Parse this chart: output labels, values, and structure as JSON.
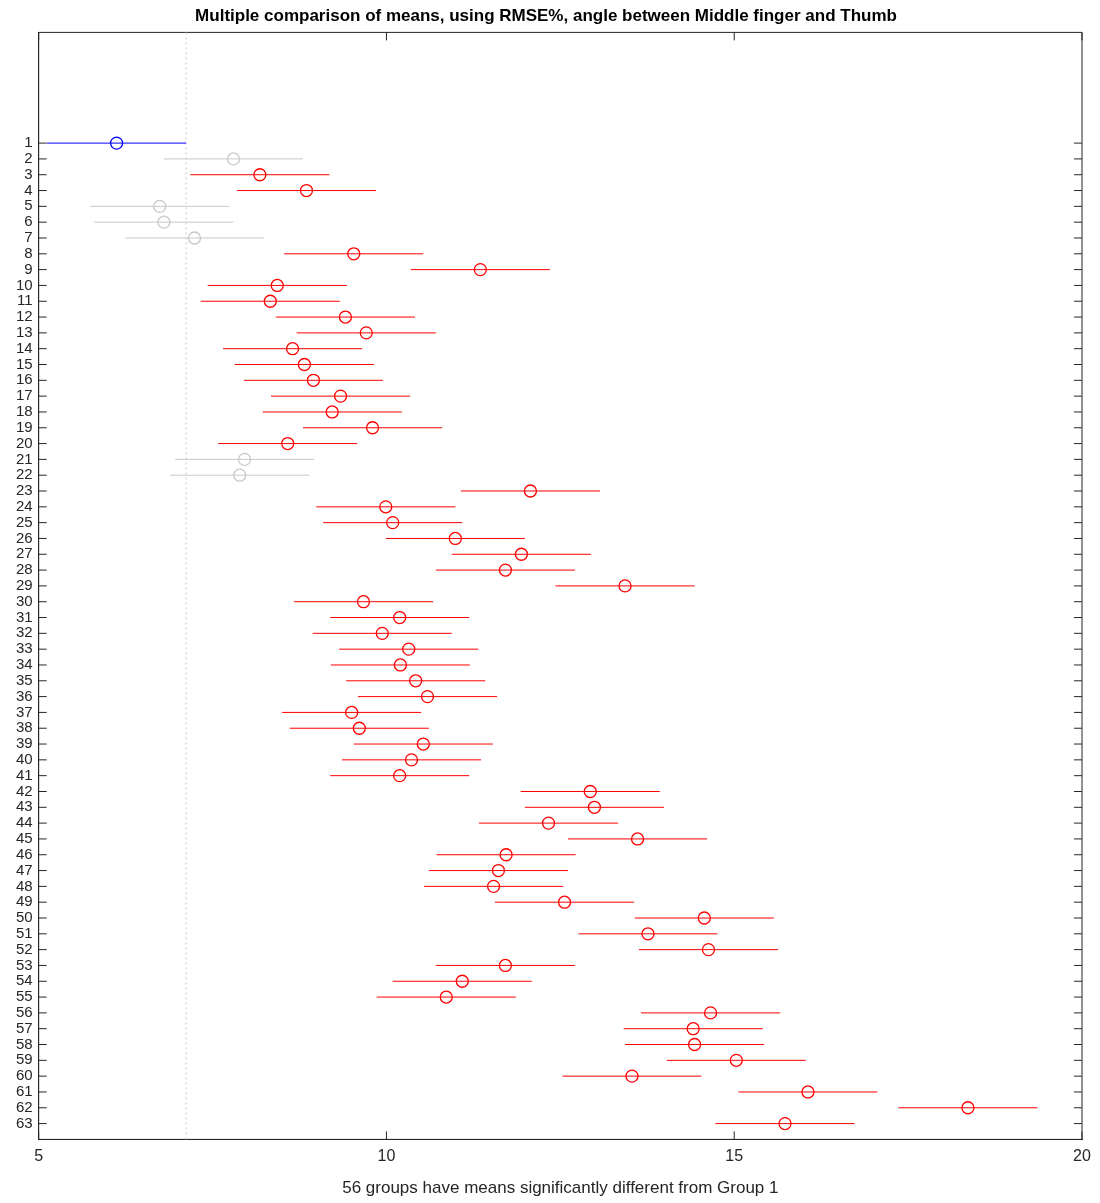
{
  "chart_data": {
    "type": "scatter",
    "orientation": "horizontal",
    "title": "Multiple comparison of means, using RMSE%, angle between Middle finger and Thumb",
    "xlabel": "56 groups have means significantly different from Group 1",
    "categories": [
      "1",
      "2",
      "3",
      "4",
      "5",
      "6",
      "7",
      "8",
      "9",
      "10",
      "11",
      "12",
      "13",
      "14",
      "15",
      "16",
      "17",
      "18",
      "19",
      "20",
      "21",
      "22",
      "23",
      "24",
      "25",
      "26",
      "27",
      "28",
      "29",
      "30",
      "31",
      "32",
      "33",
      "34",
      "35",
      "36",
      "37",
      "38",
      "39",
      "40",
      "41",
      "42",
      "43",
      "44",
      "45",
      "46",
      "47",
      "48",
      "49",
      "50",
      "51",
      "52",
      "53",
      "54",
      "55",
      "56",
      "57",
      "58",
      "59",
      "60",
      "61",
      "62",
      "63"
    ],
    "values": [
      6.12,
      7.8,
      8.18,
      8.85,
      6.74,
      6.8,
      7.24,
      9.53,
      11.35,
      8.43,
      8.33,
      9.41,
      9.71,
      8.65,
      8.82,
      8.95,
      9.34,
      9.22,
      9.8,
      8.58,
      7.96,
      7.89,
      12.07,
      9.99,
      10.09,
      10.99,
      11.94,
      11.71,
      13.43,
      9.67,
      10.19,
      9.94,
      10.32,
      10.2,
      10.42,
      10.59,
      9.5,
      9.61,
      10.53,
      10.36,
      10.19,
      12.93,
      12.99,
      12.33,
      13.61,
      11.72,
      11.61,
      11.54,
      12.56,
      14.57,
      13.76,
      14.63,
      11.71,
      11.09,
      10.86,
      14.66,
      14.41,
      14.43,
      15.03,
      13.53,
      16.06,
      18.36,
      15.73
    ],
    "errors": [
      1.0,
      1.0,
      1.0,
      1.0,
      1.0,
      1.0,
      1.0,
      1.0,
      1.0,
      1.0,
      1.0,
      1.0,
      1.0,
      1.0,
      1.0,
      1.0,
      1.0,
      1.0,
      1.0,
      1.0,
      1.0,
      1.0,
      1.0,
      1.0,
      1.0,
      1.0,
      1.0,
      1.0,
      1.0,
      1.0,
      1.0,
      1.0,
      1.0,
      1.0,
      1.0,
      1.0,
      1.0,
      1.0,
      1.0,
      1.0,
      1.0,
      1.0,
      1.0,
      1.0,
      1.0,
      1.0,
      1.0,
      1.0,
      1.0,
      1.0,
      1.0,
      1.0,
      1.0,
      1.0,
      1.0,
      1.0,
      1.0,
      1.0,
      1.0,
      1.0,
      1.0,
      1.0,
      1.0
    ],
    "colors": [
      "#0000ff",
      "#c8c8c8",
      "#ff0000",
      "#ff0000",
      "#c8c8c8",
      "#c8c8c8",
      "#c8c8c8",
      "#ff0000",
      "#ff0000",
      "#ff0000",
      "#ff0000",
      "#ff0000",
      "#ff0000",
      "#ff0000",
      "#ff0000",
      "#ff0000",
      "#ff0000",
      "#ff0000",
      "#ff0000",
      "#ff0000",
      "#c8c8c8",
      "#c8c8c8",
      "#ff0000",
      "#ff0000",
      "#ff0000",
      "#ff0000",
      "#ff0000",
      "#ff0000",
      "#ff0000",
      "#ff0000",
      "#ff0000",
      "#ff0000",
      "#ff0000",
      "#ff0000",
      "#ff0000",
      "#ff0000",
      "#ff0000",
      "#ff0000",
      "#ff0000",
      "#ff0000",
      "#ff0000",
      "#ff0000",
      "#ff0000",
      "#ff0000",
      "#ff0000",
      "#ff0000",
      "#ff0000",
      "#ff0000",
      "#ff0000",
      "#ff0000",
      "#ff0000",
      "#ff0000",
      "#ff0000",
      "#ff0000",
      "#ff0000",
      "#ff0000",
      "#ff0000",
      "#ff0000",
      "#ff0000",
      "#ff0000",
      "#ff0000",
      "#ff0000",
      "#ff0000"
    ],
    "xlim": [
      5,
      20
    ],
    "xticks": [
      5,
      10,
      15,
      20
    ],
    "grid": false,
    "legend": false,
    "marker": "circle",
    "ref_lines": [
      {
        "axis": "x",
        "value": 7.12,
        "color": "#c8c8c8",
        "line_style": "dotted"
      }
    ]
  }
}
